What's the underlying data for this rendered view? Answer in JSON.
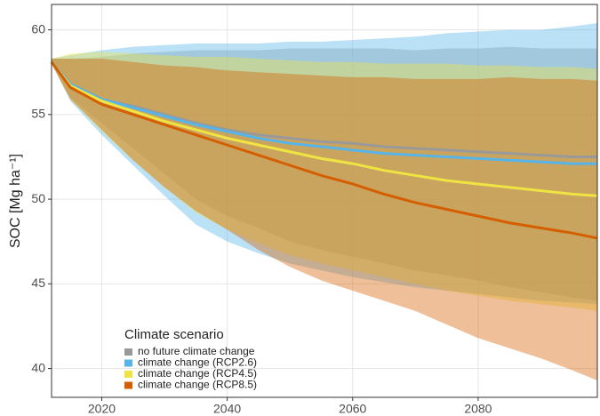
{
  "chart_data": {
    "type": "line",
    "y_label": "SOC [Mg ha⁻¹]",
    "legend_title": "Climate scenario",
    "legend_position": "bottom-left",
    "grid": true,
    "x": [
      2012,
      2015,
      2020,
      2025,
      2030,
      2035,
      2040,
      2045,
      2050,
      2055,
      2060,
      2065,
      2070,
      2075,
      2080,
      2085,
      2090,
      2095,
      2099
    ],
    "xlim": [
      2012,
      2099
    ],
    "xticks": [
      2020,
      2040,
      2060,
      2080
    ],
    "ylim": [
      38.3,
      61.5
    ],
    "yticks": [
      40,
      45,
      50,
      55,
      60
    ],
    "series": [
      {
        "name": "no future climate change",
        "color": "#999999",
        "values": [
          58.1,
          56.8,
          55.9,
          55.5,
          55.0,
          54.5,
          54.1,
          53.8,
          53.6,
          53.4,
          53.3,
          53.1,
          53.0,
          52.9,
          52.8,
          52.7,
          52.6,
          52.5,
          52.5
        ],
        "lower": [
          58,
          56,
          54.5,
          53,
          51.5,
          50,
          49,
          48.3,
          47.5,
          47,
          46.6,
          46.2,
          45.8,
          45.5,
          45.2,
          44.8,
          44.5,
          44.2,
          44.0
        ],
        "upper": [
          58.3,
          58.3,
          58.4,
          58.6,
          58.7,
          58.8,
          58.8,
          58.8,
          58.9,
          58.9,
          58.9,
          58.9,
          58.8,
          58.9,
          58.9,
          59,
          58.9,
          58.9,
          58.9
        ]
      },
      {
        "name": "climate change (RCP2.6)",
        "color": "#56b4e9",
        "values": [
          58.1,
          56.8,
          55.9,
          55.4,
          54.9,
          54.4,
          54.0,
          53.6,
          53.3,
          53.1,
          52.9,
          52.7,
          52.6,
          52.5,
          52.4,
          52.3,
          52.2,
          52.1,
          52.1
        ],
        "lower": [
          58,
          55.8,
          53.8,
          52,
          50.2,
          48.5,
          47.5,
          46.8,
          46.2,
          45.8,
          45.4,
          45.1,
          44.8,
          44.6,
          44.4,
          44.2,
          44.0,
          43.9,
          43.8
        ],
        "upper": [
          58.3,
          58.5,
          58.8,
          59,
          59.1,
          59.2,
          59.2,
          59.2,
          59.3,
          59.3,
          59.4,
          59.5,
          59.6,
          59.8,
          59.9,
          60,
          60,
          60.2,
          60.4
        ]
      },
      {
        "name": "climate change (RCP4.5)",
        "color": "#f0e442",
        "values": [
          58.1,
          56.7,
          55.8,
          55.2,
          54.6,
          54.1,
          53.6,
          53.2,
          52.8,
          52.4,
          52.1,
          51.7,
          51.4,
          51.1,
          50.9,
          50.7,
          50.5,
          50.3,
          50.2
        ],
        "lower": [
          58,
          55.9,
          54,
          52.3,
          50.7,
          49.2,
          48.2,
          47.4,
          46.7,
          46.2,
          45.8,
          45.4,
          45.0,
          44.6,
          44.3,
          44.0,
          43.8,
          43.6,
          43.4
        ],
        "upper": [
          58.3,
          58.6,
          58.7,
          58.6,
          58.5,
          58.4,
          58.4,
          58.3,
          58.2,
          58.1,
          58.1,
          58.0,
          58.0,
          58.0,
          57.9,
          57.9,
          57.8,
          57.8,
          57.7
        ]
      },
      {
        "name": "climate change (RCP8.5)",
        "color": "#d55e00",
        "values": [
          58.1,
          56.6,
          55.6,
          55.0,
          54.4,
          53.8,
          53.2,
          52.6,
          52.0,
          51.4,
          50.9,
          50.3,
          49.8,
          49.4,
          49.0,
          48.6,
          48.3,
          48.0,
          47.7
        ],
        "lower": [
          58,
          55.9,
          54.1,
          52.3,
          50.7,
          49.3,
          48.2,
          47.0,
          46.0,
          45.2,
          44.6,
          44.0,
          43.4,
          42.6,
          41.8,
          41.2,
          40.6,
          39.9,
          39.3
        ],
        "upper": [
          58.3,
          58.3,
          58.3,
          58.1,
          57.9,
          57.8,
          57.6,
          57.5,
          57.4,
          57.3,
          57.2,
          57.2,
          57.1,
          57.1,
          57.1,
          57.2,
          57.1,
          57.1,
          57.0
        ]
      }
    ]
  }
}
